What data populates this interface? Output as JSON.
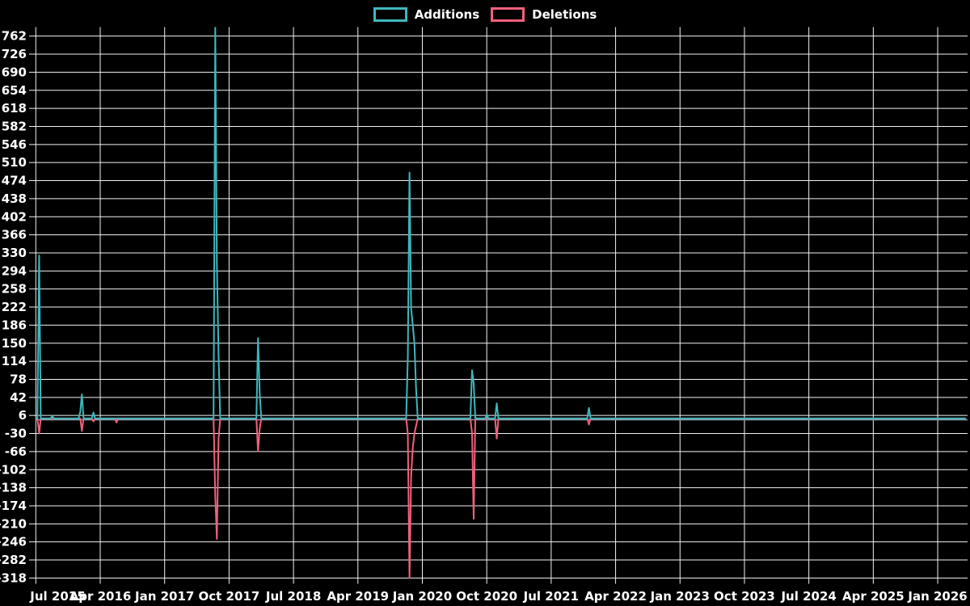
{
  "legend": {
    "items": [
      {
        "label": "Additions",
        "color": "#3db8be"
      },
      {
        "label": "Deletions",
        "color": "#f2607c"
      }
    ]
  },
  "colors": {
    "background": "#000000",
    "grid": "#f2f2f2",
    "tick_text": "#ffffff",
    "zero_line": "#939ea9",
    "additions": "#3db8be",
    "deletions": "#f2607c"
  },
  "chart_data": {
    "type": "line",
    "title": "",
    "xlabel": "",
    "ylabel": "",
    "grid": true,
    "legend_position": "top-center",
    "background": "#000000",
    "ylim": [
      -318,
      780
    ],
    "y_tick_step": 36,
    "y_ticks": [
      762,
      726,
      690,
      654,
      618,
      582,
      546,
      510,
      474,
      438,
      402,
      366,
      330,
      294,
      258,
      222,
      186,
      150,
      114,
      78,
      42,
      6,
      -30,
      -66,
      -102,
      -138,
      -174,
      -210,
      -246,
      -282,
      -318
    ],
    "x_ticks": [
      "Jul 2015",
      "Apr 2016",
      "Jan 2017",
      "Oct 2017",
      "Jul 2018",
      "Apr 2019",
      "Jan 2020",
      "Oct 2020",
      "Jul 2021",
      "Apr 2022",
      "Jan 2023",
      "Oct 2023",
      "Jul 2024",
      "Apr 2025",
      "Jan 2026"
    ],
    "x_tick_interval_months": 9,
    "x_range": [
      "2015-07-01",
      "2026-05-01"
    ],
    "sampling": "weekly",
    "baseline_value": 0,
    "series": [
      {
        "name": "Additions",
        "color": "#3db8be",
        "value_key": "additions"
      },
      {
        "name": "Deletions",
        "color": "#f2607c",
        "value_key": "deletions"
      }
    ],
    "events": [
      {
        "date": "2015-07-12",
        "additions": 325,
        "deletions": -30
      },
      {
        "date": "2015-09-06",
        "additions": 5,
        "deletions": 0
      },
      {
        "date": "2016-01-03",
        "additions": 13,
        "deletions": 0
      },
      {
        "date": "2016-01-10",
        "additions": 48,
        "deletions": -25
      },
      {
        "date": "2016-02-28",
        "additions": 12,
        "deletions": -6
      },
      {
        "date": "2016-06-05",
        "additions": 0,
        "deletions": -8
      },
      {
        "date": "2017-07-30",
        "additions": 780,
        "deletions": -155
      },
      {
        "date": "2017-08-06",
        "additions": 310,
        "deletions": -240
      },
      {
        "date": "2017-08-13",
        "additions": 125,
        "deletions": -40
      },
      {
        "date": "2018-01-28",
        "additions": 160,
        "deletions": -65
      },
      {
        "date": "2018-02-04",
        "additions": 50,
        "deletions": -20
      },
      {
        "date": "2019-10-27",
        "additions": 120,
        "deletions": -30
      },
      {
        "date": "2019-11-03",
        "additions": 490,
        "deletions": -318
      },
      {
        "date": "2019-11-10",
        "additions": 220,
        "deletions": -115
      },
      {
        "date": "2019-11-17",
        "additions": 185,
        "deletions": -57
      },
      {
        "date": "2019-11-24",
        "additions": 150,
        "deletions": -30
      },
      {
        "date": "2019-12-01",
        "additions": 60,
        "deletions": -15
      },
      {
        "date": "2020-07-26",
        "additions": 96,
        "deletions": -30
      },
      {
        "date": "2020-08-02",
        "additions": 70,
        "deletions": -200
      },
      {
        "date": "2020-09-27",
        "additions": 8,
        "deletions": 0
      },
      {
        "date": "2020-11-08",
        "additions": 30,
        "deletions": -40
      },
      {
        "date": "2021-12-05",
        "additions": 21,
        "deletions": -12
      }
    ]
  }
}
